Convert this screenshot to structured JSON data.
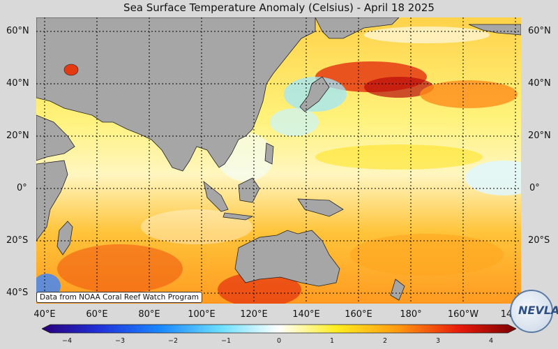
{
  "title": "Sea Surface Temperature Anomaly (Celsius) - April 18 2025",
  "lat_labels": [
    "60°N",
    "40°N",
    "20°N",
    "0°",
    "20°S",
    "40°S"
  ],
  "lon_labels": [
    "40°E",
    "60°E",
    "80°E",
    "100°E",
    "120°E",
    "140°E",
    "160°E",
    "180°",
    "160°W",
    "14"
  ],
  "colorbar": {
    "ticks": [
      "−4",
      "−3",
      "−2",
      "−1",
      "0",
      "1",
      "2",
      "3",
      "4"
    ],
    "range": [
      -4,
      4
    ]
  },
  "credit": "Data from NOAA Coral Reef Watch Program",
  "logo": {
    "text": "NEVLAB"
  },
  "colors": {
    "land": "#a6a6a6",
    "background": "#d9d9d9"
  }
}
